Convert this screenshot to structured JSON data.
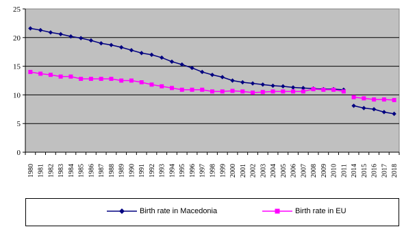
{
  "chart_data": {
    "type": "line",
    "title": "",
    "xlabel": "",
    "ylabel": "",
    "ylim": [
      0,
      25
    ],
    "yticks": [
      "0",
      "5",
      "10",
      "15",
      "20",
      "25"
    ],
    "x": [
      "1980",
      "1981",
      "1982",
      "1983",
      "1984",
      "1985",
      "1986",
      "1987",
      "1988",
      "1989",
      "1990",
      "1991",
      "1992",
      "1993",
      "1994",
      "1995",
      "1996",
      "1997",
      "1998",
      "1999",
      "2000",
      "2001",
      "2002",
      "2003",
      "2004",
      "2005",
      "2006",
      "2007",
      "2008",
      "2009",
      "2010",
      "2011",
      "2014",
      "2015",
      "2016",
      "2017",
      "2018"
    ],
    "grid": true,
    "plot_background": "#c0c0c0",
    "legend_position": "bottom",
    "series": [
      {
        "name": "Birth rate in Macedonia",
        "color": "#000080",
        "marker": "diamond",
        "values": [
          21.6,
          21.3,
          20.9,
          20.6,
          20.2,
          19.9,
          19.5,
          19.0,
          18.7,
          18.3,
          17.8,
          17.3,
          17.0,
          16.5,
          15.8,
          15.3,
          14.7,
          14.0,
          13.5,
          13.1,
          12.5,
          12.2,
          12.0,
          11.8,
          11.6,
          11.5,
          11.3,
          11.2,
          11.1,
          11.0,
          11.0,
          10.9,
          8.1,
          7.7,
          7.5,
          7.0,
          6.7
        ]
      },
      {
        "name": "Birth rate in EU",
        "color": "#ff00ff",
        "marker": "square",
        "values": [
          14.0,
          13.7,
          13.5,
          13.2,
          13.2,
          12.8,
          12.8,
          12.8,
          12.8,
          12.5,
          12.5,
          12.2,
          11.8,
          11.5,
          11.2,
          10.9,
          10.9,
          10.9,
          10.6,
          10.6,
          10.7,
          10.6,
          10.4,
          10.5,
          10.6,
          10.6,
          10.6,
          10.6,
          11.0,
          10.9,
          10.9,
          10.6,
          9.6,
          9.4,
          9.2,
          9.2,
          9.1
        ]
      }
    ],
    "gaps_after_index": [
      31
    ]
  }
}
